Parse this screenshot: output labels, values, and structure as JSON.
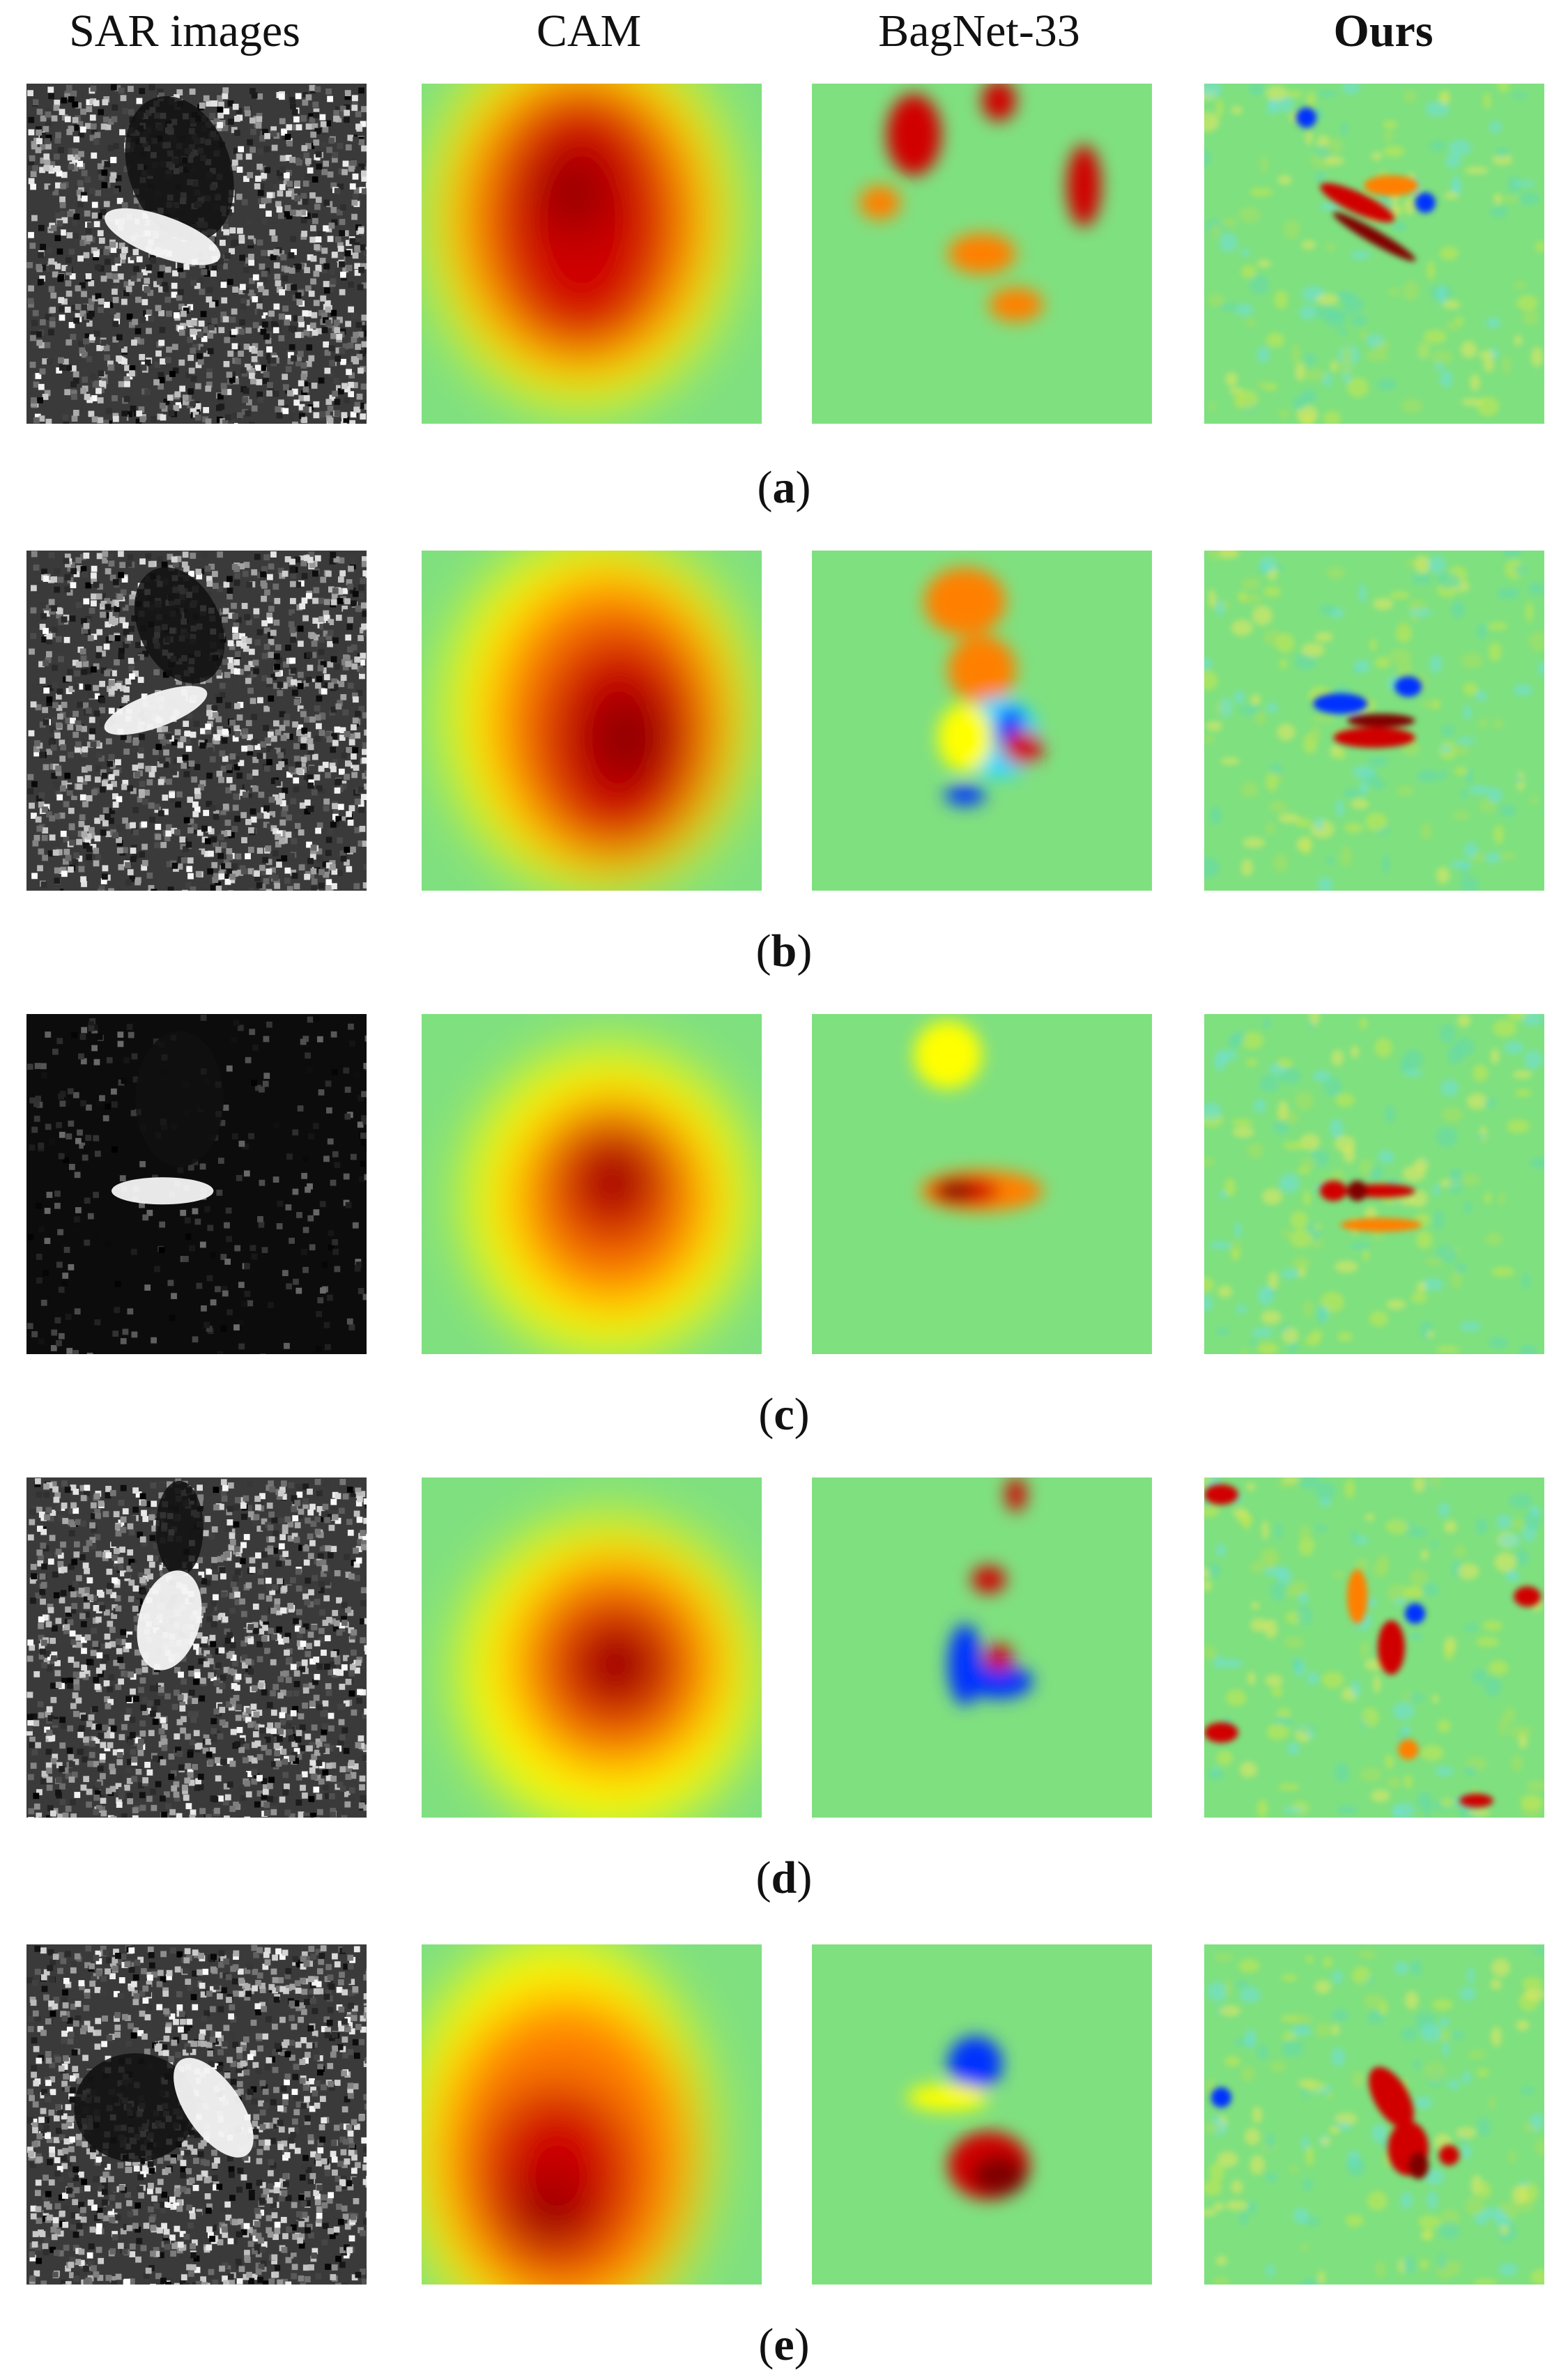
{
  "columns": [
    {
      "label": "SAR images",
      "bold": false
    },
    {
      "label": "CAM",
      "bold": false
    },
    {
      "label": "BagNet-33",
      "bold": false
    },
    {
      "label": "Ours",
      "bold": true
    }
  ],
  "rows": [
    {
      "caption_open": "(",
      "caption_label": "a",
      "caption_close": ")"
    },
    {
      "caption_open": "(",
      "caption_label": "b",
      "caption_close": ")"
    },
    {
      "caption_open": "(",
      "caption_label": "c",
      "caption_close": ")"
    },
    {
      "caption_open": "(",
      "caption_label": "d",
      "caption_close": ")"
    },
    {
      "caption_open": "(",
      "caption_label": "e",
      "caption_close": ")"
    }
  ],
  "colors": {
    "jet_background": "#7fe07f",
    "jet_red": "#d00000",
    "jet_darkred": "#800000",
    "jet_orange": "#ff8000",
    "jet_yellow": "#ffff00",
    "jet_blue": "#0030ff",
    "jet_cyan": "#30d8ff",
    "sar_dark": "#101010",
    "sar_bright": "#f4f4f4"
  }
}
